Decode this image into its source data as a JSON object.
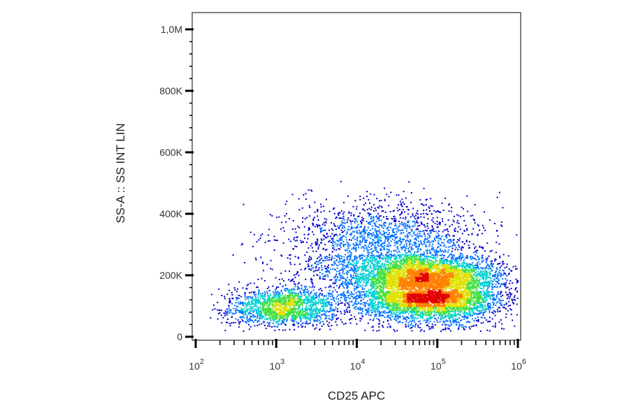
{
  "chart_data": {
    "type": "scatter",
    "style": "density-dot-plot",
    "title": "",
    "xlabel": "CD25 APC",
    "ylabel": "SS-A :: SS INT LIN",
    "x_scale": "log",
    "x_range": [
      100,
      1000000
    ],
    "y_range": [
      0,
      1040000
    ],
    "x_ticks": [
      {
        "value": 100,
        "base": "10",
        "exp": "2"
      },
      {
        "value": 1000,
        "base": "10",
        "exp": "3"
      },
      {
        "value": 10000,
        "base": "10",
        "exp": "4"
      },
      {
        "value": 100000,
        "base": "10",
        "exp": "5"
      },
      {
        "value": 1000000,
        "base": "10",
        "exp": "6"
      }
    ],
    "y_ticks": [
      {
        "value": 0,
        "label": "0"
      },
      {
        "value": 200000,
        "label": "200K"
      },
      {
        "value": 400000,
        "label": "400K"
      },
      {
        "value": 600000,
        "label": "600K"
      },
      {
        "value": 800000,
        "label": "800K"
      },
      {
        "value": 1000000,
        "label": "1,0M"
      }
    ],
    "grid": false,
    "legend": "none",
    "density_colors": [
      "#0000c8",
      "#0070ff",
      "#00d0d0",
      "#40e040",
      "#e0e000",
      "#ff8000",
      "#e00000"
    ],
    "populations": [
      {
        "center_x": 80000,
        "center_y": 150000,
        "spread_log_x": 0.45,
        "spread_y": 50000,
        "weight": 0.62
      },
      {
        "center_x": 1200,
        "center_y": 95000,
        "spread_log_x": 0.35,
        "spread_y": 28000,
        "weight": 0.16
      },
      {
        "center_x": 20000,
        "center_y": 270000,
        "spread_log_x": 0.6,
        "spread_y": 75000,
        "weight": 0.22
      }
    ]
  }
}
